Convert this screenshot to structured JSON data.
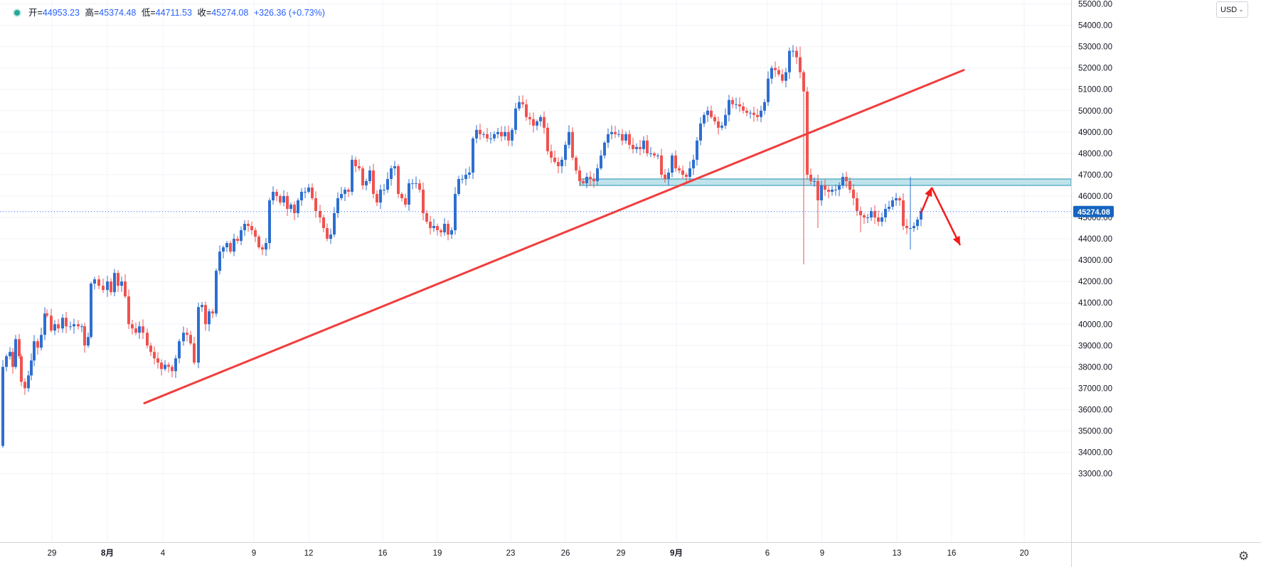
{
  "legend": {
    "open_label": "开=",
    "open": "44953.23",
    "high_label": "高=",
    "high": "45374.48",
    "low_label": "低=",
    "low": "44711.53",
    "close_label": "收=",
    "close": "45274.08",
    "change": "+326.36 (+0.73%)"
  },
  "currency": {
    "label": "USD",
    "chevron": "chevron-down-icon"
  },
  "settings_icon": "gear-icon",
  "colors": {
    "up": "#2e6fcf",
    "down": "#ef5350",
    "trendline": "#f23d3d",
    "zone_fill": "#bfe3ea",
    "zone_border": "#5fb1c8",
    "price_tag": "#1565c0"
  },
  "chart_data": {
    "type": "candlestick",
    "ylim": [
      32500,
      55500
    ],
    "y_ticks": [
      33000,
      34000,
      35000,
      36000,
      37000,
      38000,
      39000,
      40000,
      41000,
      42000,
      43000,
      44000,
      45000,
      46000,
      47000,
      48000,
      49000,
      50000,
      51000,
      52000,
      53000,
      54000,
      55000
    ],
    "y_tick_labels": [
      "33000.00",
      "34000.00",
      "35000.00",
      "36000.00",
      "37000.00",
      "38000.00",
      "39000.00",
      "40000.00",
      "41000.00",
      "42000.00",
      "43000.00",
      "44000.00",
      "45000.00",
      "46000.00",
      "47000.00",
      "48000.00",
      "49000.00",
      "50000.00",
      "51000.00",
      "52000.00",
      "53000.00",
      "54000.00",
      "55000.00"
    ],
    "x_ticks": [
      "29",
      "8月",
      "4",
      "9",
      "12",
      "16",
      "19",
      "23",
      "26",
      "29",
      "9月",
      "6",
      "9",
      "13",
      "16",
      "20"
    ],
    "x_ticks_bold": [
      "8月",
      "9月"
    ],
    "last_price": 45274.08,
    "last_price_label": "45274.08",
    "grid": true,
    "path_points": [
      [
        0,
        34300
      ],
      [
        4,
        38000
      ],
      [
        9,
        38500
      ],
      [
        14,
        38700
      ],
      [
        18,
        38000
      ],
      [
        22,
        39300
      ],
      [
        27,
        38500
      ],
      [
        30,
        37300
      ],
      [
        35,
        37000
      ],
      [
        40,
        37600
      ],
      [
        44,
        38300
      ],
      [
        48,
        39200
      ],
      [
        53,
        38900
      ],
      [
        58,
        39500
      ],
      [
        63,
        40500
      ],
      [
        66,
        40400
      ],
      [
        72,
        39700
      ],
      [
        77,
        40000
      ],
      [
        82,
        39800
      ],
      [
        88,
        40300
      ],
      [
        93,
        39900
      ],
      [
        99,
        39900
      ],
      [
        104,
        40000
      ],
      [
        110,
        39900
      ],
      [
        115,
        39900
      ],
      [
        119,
        39000
      ],
      [
        124,
        39400
      ],
      [
        128,
        41900
      ],
      [
        133,
        42100
      ],
      [
        139,
        41800
      ],
      [
        145,
        41600
      ],
      [
        151,
        42000
      ],
      [
        156,
        41500
      ],
      [
        161,
        42400
      ],
      [
        166,
        41800
      ],
      [
        171,
        42000
      ],
      [
        176,
        41300
      ],
      [
        181,
        40000
      ],
      [
        186,
        39800
      ],
      [
        191,
        39600
      ],
      [
        196,
        39900
      ],
      [
        201,
        39600
      ],
      [
        207,
        39000
      ],
      [
        212,
        38700
      ],
      [
        217,
        38400
      ],
      [
        222,
        38200
      ],
      [
        227,
        37900
      ],
      [
        232,
        38100
      ],
      [
        237,
        38000
      ],
      [
        242,
        37800
      ],
      [
        247,
        38400
      ],
      [
        252,
        39200
      ],
      [
        258,
        39600
      ],
      [
        263,
        39500
      ],
      [
        268,
        39100
      ],
      [
        273,
        38200
      ],
      [
        279,
        40800
      ],
      [
        284,
        40900
      ],
      [
        289,
        40000
      ],
      [
        294,
        40600
      ],
      [
        299,
        40500
      ],
      [
        304,
        42500
      ],
      [
        309,
        43400
      ],
      [
        314,
        43600
      ],
      [
        319,
        43800
      ],
      [
        324,
        43400
      ],
      [
        329,
        44000
      ],
      [
        334,
        43900
      ],
      [
        339,
        44400
      ],
      [
        344,
        44700
      ],
      [
        349,
        44600
      ],
      [
        354,
        44400
      ],
      [
        359,
        44100
      ],
      [
        364,
        43600
      ],
      [
        369,
        43500
      ],
      [
        374,
        43800
      ],
      [
        379,
        45800
      ],
      [
        384,
        46200
      ],
      [
        389,
        46000
      ],
      [
        394,
        45700
      ],
      [
        399,
        46000
      ],
      [
        404,
        45400
      ],
      [
        409,
        45600
      ],
      [
        414,
        45200
      ],
      [
        419,
        45800
      ],
      [
        424,
        46200
      ],
      [
        429,
        46200
      ],
      [
        434,
        46400
      ],
      [
        439,
        45900
      ],
      [
        444,
        45300
      ],
      [
        450,
        45000
      ],
      [
        455,
        44500
      ],
      [
        460,
        44000
      ],
      [
        465,
        44200
      ],
      [
        470,
        45200
      ],
      [
        475,
        45900
      ],
      [
        480,
        46100
      ],
      [
        485,
        46300
      ],
      [
        490,
        46200
      ],
      [
        495,
        47700
      ],
      [
        500,
        47400
      ],
      [
        505,
        47300
      ],
      [
        510,
        46500
      ],
      [
        515,
        46700
      ],
      [
        520,
        47200
      ],
      [
        525,
        46100
      ],
      [
        530,
        45700
      ],
      [
        535,
        46300
      ],
      [
        540,
        46300
      ],
      [
        545,
        46800
      ],
      [
        550,
        47300
      ],
      [
        555,
        47400
      ],
      [
        560,
        46100
      ],
      [
        565,
        45900
      ],
      [
        570,
        45600
      ],
      [
        575,
        46600
      ],
      [
        580,
        46600
      ],
      [
        585,
        46600
      ],
      [
        590,
        46300
      ],
      [
        595,
        45200
      ],
      [
        600,
        44800
      ],
      [
        605,
        44500
      ],
      [
        610,
        44600
      ],
      [
        615,
        44400
      ],
      [
        620,
        44300
      ],
      [
        625,
        44700
      ],
      [
        630,
        44200
      ],
      [
        635,
        44400
      ],
      [
        640,
        46100
      ],
      [
        645,
        46800
      ],
      [
        650,
        46800
      ],
      [
        655,
        47000
      ],
      [
        660,
        47100
      ],
      [
        665,
        48700
      ],
      [
        670,
        49100
      ],
      [
        675,
        48900
      ],
      [
        680,
        48900
      ],
      [
        685,
        48700
      ],
      [
        690,
        48700
      ],
      [
        695,
        48900
      ],
      [
        700,
        49000
      ],
      [
        705,
        48800
      ],
      [
        710,
        49000
      ],
      [
        715,
        48600
      ],
      [
        720,
        49100
      ],
      [
        725,
        50100
      ],
      [
        730,
        50400
      ],
      [
        735,
        50300
      ],
      [
        740,
        49700
      ],
      [
        745,
        49600
      ],
      [
        750,
        49300
      ],
      [
        755,
        49500
      ],
      [
        760,
        49700
      ],
      [
        765,
        49200
      ],
      [
        770,
        48100
      ],
      [
        775,
        47800
      ],
      [
        780,
        47600
      ],
      [
        785,
        47400
      ],
      [
        790,
        47700
      ],
      [
        795,
        48400
      ],
      [
        800,
        49000
      ],
      [
        805,
        47800
      ],
      [
        810,
        47200
      ],
      [
        815,
        46700
      ],
      [
        820,
        46600
      ],
      [
        825,
        46900
      ],
      [
        830,
        46800
      ],
      [
        835,
        46700
      ],
      [
        840,
        47300
      ],
      [
        845,
        47900
      ],
      [
        850,
        48500
      ],
      [
        855,
        48900
      ],
      [
        860,
        49000
      ],
      [
        865,
        48900
      ],
      [
        870,
        48900
      ],
      [
        875,
        48600
      ],
      [
        880,
        48900
      ],
      [
        885,
        48400
      ],
      [
        890,
        48200
      ],
      [
        895,
        48300
      ],
      [
        900,
        48200
      ],
      [
        905,
        48600
      ],
      [
        910,
        48000
      ],
      [
        915,
        48000
      ],
      [
        920,
        47900
      ],
      [
        925,
        47900
      ],
      [
        930,
        47000
      ],
      [
        935,
        46800
      ],
      [
        940,
        47100
      ],
      [
        945,
        47900
      ],
      [
        950,
        47300
      ],
      [
        955,
        47200
      ],
      [
        960,
        47000
      ],
      [
        965,
        46900
      ],
      [
        970,
        47300
      ],
      [
        975,
        47700
      ],
      [
        980,
        48600
      ],
      [
        985,
        49400
      ],
      [
        990,
        49800
      ],
      [
        995,
        50000
      ],
      [
        1000,
        49700
      ],
      [
        1005,
        49500
      ],
      [
        1010,
        49200
      ],
      [
        1015,
        49300
      ],
      [
        1020,
        49800
      ],
      [
        1025,
        50500
      ],
      [
        1030,
        50300
      ],
      [
        1035,
        50300
      ],
      [
        1040,
        50200
      ],
      [
        1045,
        50000
      ],
      [
        1050,
        49900
      ],
      [
        1055,
        49900
      ],
      [
        1060,
        49800
      ],
      [
        1065,
        49700
      ],
      [
        1070,
        50000
      ],
      [
        1075,
        50400
      ],
      [
        1080,
        51500
      ],
      [
        1085,
        52000
      ],
      [
        1090,
        51900
      ],
      [
        1095,
        51700
      ],
      [
        1100,
        51400
      ],
      [
        1105,
        51800
      ],
      [
        1110,
        52800
      ],
      [
        1115,
        52800
      ],
      [
        1120,
        52500
      ],
      [
        1125,
        51800
      ],
      [
        1130,
        50900
      ],
      [
        1135,
        47000
      ],
      [
        1140,
        46700
      ],
      [
        1145,
        46700
      ],
      [
        1150,
        45800
      ],
      [
        1155,
        46500
      ],
      [
        1160,
        46300
      ],
      [
        1165,
        46200
      ],
      [
        1170,
        46300
      ],
      [
        1175,
        46300
      ],
      [
        1180,
        46500
      ],
      [
        1185,
        46900
      ],
      [
        1190,
        46700
      ],
      [
        1195,
        46300
      ],
      [
        1200,
        45900
      ],
      [
        1205,
        45300
      ],
      [
        1210,
        45100
      ],
      [
        1215,
        45000
      ],
      [
        1220,
        45000
      ],
      [
        1225,
        45300
      ],
      [
        1230,
        45000
      ],
      [
        1235,
        44800
      ],
      [
        1240,
        45000
      ],
      [
        1245,
        45400
      ],
      [
        1250,
        45500
      ],
      [
        1255,
        45800
      ],
      [
        1260,
        45900
      ],
      [
        1265,
        45800
      ],
      [
        1270,
        44600
      ],
      [
        1275,
        44500
      ],
      [
        1280,
        44500
      ],
      [
        1285,
        44600
      ],
      [
        1290,
        44900
      ],
      [
        1295,
        45300
      ]
    ],
    "trendline": {
      "from": [
        203,
        36300
      ],
      "to": [
        1355,
        51900
      ]
    },
    "resistance_zone": [
      46500,
      46800
    ],
    "annotation_arrow_path": [
      [
        1295,
        45200
      ],
      [
        1310,
        46400
      ],
      [
        1350,
        43700
      ]
    ]
  }
}
